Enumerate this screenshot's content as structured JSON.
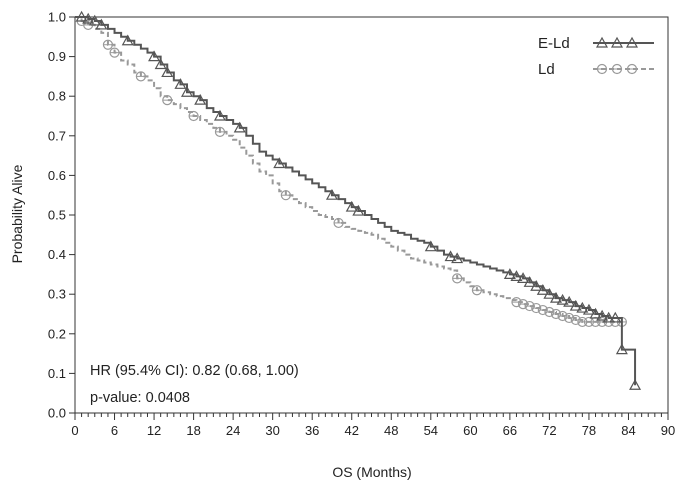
{
  "chart_data": {
    "type": "line",
    "title": "",
    "xlabel": "OS (Months)",
    "ylabel": "Probability Alive",
    "xlim": [
      0,
      90
    ],
    "ylim": [
      0.0,
      1.0
    ],
    "x_ticks": [
      0,
      6,
      12,
      18,
      24,
      30,
      36,
      42,
      48,
      54,
      60,
      66,
      72,
      78,
      84,
      90
    ],
    "x_minor_step": 1,
    "y_ticks": [
      "0.0",
      "0.1",
      "0.2",
      "0.3",
      "0.4",
      "0.5",
      "0.6",
      "0.7",
      "0.8",
      "0.9",
      "1.0"
    ],
    "grid": false,
    "legend_position": "top-right",
    "series": [
      {
        "name": "E-Ld",
        "color": "#555555",
        "line_style": "solid",
        "marker": "triangle-open",
        "step_points": [
          [
            0,
            1.0
          ],
          [
            1,
            1.0
          ],
          [
            2,
            0.995
          ],
          [
            3,
            0.99
          ],
          [
            4,
            0.98
          ],
          [
            5,
            0.97
          ],
          [
            6,
            0.96
          ],
          [
            7,
            0.95
          ],
          [
            8,
            0.94
          ],
          [
            9,
            0.93
          ],
          [
            10,
            0.92
          ],
          [
            11,
            0.91
          ],
          [
            12,
            0.9
          ],
          [
            13,
            0.88
          ],
          [
            14,
            0.86
          ],
          [
            15,
            0.84
          ],
          [
            16,
            0.83
          ],
          [
            17,
            0.81
          ],
          [
            18,
            0.8
          ],
          [
            19,
            0.79
          ],
          [
            20,
            0.77
          ],
          [
            21,
            0.76
          ],
          [
            22,
            0.75
          ],
          [
            23,
            0.74
          ],
          [
            24,
            0.73
          ],
          [
            25,
            0.72
          ],
          [
            26,
            0.7
          ],
          [
            27,
            0.68
          ],
          [
            28,
            0.66
          ],
          [
            29,
            0.65
          ],
          [
            30,
            0.64
          ],
          [
            31,
            0.63
          ],
          [
            32,
            0.62
          ],
          [
            33,
            0.61
          ],
          [
            34,
            0.6
          ],
          [
            35,
            0.59
          ],
          [
            36,
            0.58
          ],
          [
            37,
            0.57
          ],
          [
            38,
            0.56
          ],
          [
            39,
            0.55
          ],
          [
            40,
            0.54
          ],
          [
            41,
            0.53
          ],
          [
            42,
            0.52
          ],
          [
            43,
            0.51
          ],
          [
            44,
            0.5
          ],
          [
            45,
            0.49
          ],
          [
            46,
            0.48
          ],
          [
            47,
            0.47
          ],
          [
            48,
            0.46
          ],
          [
            49,
            0.455
          ],
          [
            50,
            0.45
          ],
          [
            51,
            0.44
          ],
          [
            52,
            0.435
          ],
          [
            53,
            0.43
          ],
          [
            54,
            0.42
          ],
          [
            55,
            0.41
          ],
          [
            56,
            0.4
          ],
          [
            57,
            0.395
          ],
          [
            58,
            0.39
          ],
          [
            59,
            0.385
          ],
          [
            60,
            0.38
          ],
          [
            61,
            0.375
          ],
          [
            62,
            0.37
          ],
          [
            63,
            0.365
          ],
          [
            64,
            0.36
          ],
          [
            65,
            0.355
          ],
          [
            66,
            0.35
          ],
          [
            67,
            0.345
          ],
          [
            68,
            0.34
          ],
          [
            69,
            0.33
          ],
          [
            70,
            0.32
          ],
          [
            71,
            0.31
          ],
          [
            72,
            0.3
          ],
          [
            73,
            0.29
          ],
          [
            74,
            0.285
          ],
          [
            75,
            0.28
          ],
          [
            76,
            0.27
          ],
          [
            77,
            0.265
          ],
          [
            78,
            0.26
          ],
          [
            79,
            0.25
          ],
          [
            80,
            0.245
          ],
          [
            81,
            0.24
          ],
          [
            82,
            0.24
          ],
          [
            83,
            0.16
          ],
          [
            84,
            0.16
          ],
          [
            85,
            0.07
          ]
        ],
        "censor_x": [
          1,
          2,
          3,
          4,
          8,
          12,
          13,
          14,
          16,
          17,
          19,
          22,
          25,
          31,
          39,
          42,
          43,
          54,
          57,
          58,
          66,
          67,
          68,
          69,
          70,
          71,
          72,
          73,
          74,
          75,
          76,
          77,
          78,
          79,
          80,
          81,
          82,
          83,
          85
        ]
      },
      {
        "name": "Ld",
        "color": "#999999",
        "line_style": "dashed",
        "marker": "circle-open",
        "step_points": [
          [
            0,
            1.0
          ],
          [
            1,
            0.99
          ],
          [
            2,
            0.98
          ],
          [
            3,
            0.97
          ],
          [
            4,
            0.96
          ],
          [
            5,
            0.93
          ],
          [
            6,
            0.91
          ],
          [
            7,
            0.89
          ],
          [
            8,
            0.88
          ],
          [
            9,
            0.86
          ],
          [
            10,
            0.85
          ],
          [
            11,
            0.84
          ],
          [
            12,
            0.82
          ],
          [
            13,
            0.8
          ],
          [
            14,
            0.79
          ],
          [
            15,
            0.78
          ],
          [
            16,
            0.77
          ],
          [
            17,
            0.76
          ],
          [
            18,
            0.75
          ],
          [
            19,
            0.74
          ],
          [
            20,
            0.73
          ],
          [
            21,
            0.72
          ],
          [
            22,
            0.71
          ],
          [
            23,
            0.7
          ],
          [
            24,
            0.69
          ],
          [
            25,
            0.67
          ],
          [
            26,
            0.65
          ],
          [
            27,
            0.63
          ],
          [
            28,
            0.61
          ],
          [
            29,
            0.6
          ],
          [
            30,
            0.58
          ],
          [
            31,
            0.56
          ],
          [
            32,
            0.55
          ],
          [
            33,
            0.54
          ],
          [
            34,
            0.53
          ],
          [
            35,
            0.52
          ],
          [
            36,
            0.51
          ],
          [
            37,
            0.5
          ],
          [
            38,
            0.495
          ],
          [
            39,
            0.49
          ],
          [
            40,
            0.48
          ],
          [
            41,
            0.47
          ],
          [
            42,
            0.465
          ],
          [
            43,
            0.46
          ],
          [
            44,
            0.455
          ],
          [
            45,
            0.45
          ],
          [
            46,
            0.44
          ],
          [
            47,
            0.43
          ],
          [
            48,
            0.42
          ],
          [
            49,
            0.41
          ],
          [
            50,
            0.4
          ],
          [
            51,
            0.39
          ],
          [
            52,
            0.385
          ],
          [
            53,
            0.38
          ],
          [
            54,
            0.375
          ],
          [
            55,
            0.37
          ],
          [
            56,
            0.365
          ],
          [
            57,
            0.36
          ],
          [
            58,
            0.34
          ],
          [
            59,
            0.33
          ],
          [
            60,
            0.32
          ],
          [
            61,
            0.31
          ],
          [
            62,
            0.305
          ],
          [
            63,
            0.3
          ],
          [
            64,
            0.295
          ],
          [
            65,
            0.29
          ],
          [
            66,
            0.285
          ],
          [
            67,
            0.28
          ],
          [
            68,
            0.275
          ],
          [
            69,
            0.27
          ],
          [
            70,
            0.265
          ],
          [
            71,
            0.26
          ],
          [
            72,
            0.255
          ],
          [
            73,
            0.25
          ],
          [
            74,
            0.245
          ],
          [
            75,
            0.24
          ],
          [
            76,
            0.235
          ],
          [
            77,
            0.23
          ],
          [
            78,
            0.23
          ],
          [
            79,
            0.23
          ],
          [
            80,
            0.23
          ],
          [
            81,
            0.23
          ],
          [
            82,
            0.23
          ],
          [
            83,
            0.23
          ]
        ],
        "censor_x": [
          1,
          2,
          5,
          6,
          10,
          14,
          18,
          22,
          32,
          40,
          58,
          61,
          67,
          68,
          69,
          70,
          71,
          72,
          73,
          74,
          75,
          76,
          77,
          78,
          79,
          80,
          81,
          82,
          83
        ]
      }
    ],
    "annotations": {
      "hr_text": "HR (95.4% CI): 0.82 (0.68, 1.00)",
      "pvalue_text": "p-value: 0.0408"
    }
  }
}
